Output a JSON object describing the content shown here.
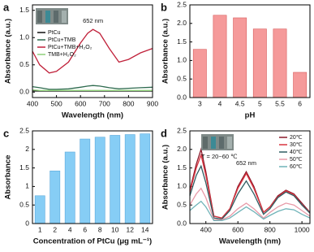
{
  "chart_data": [
    {
      "type": "line",
      "label": "a",
      "xlabel": "Wavelength (nm)",
      "ylabel": "Absorbance (a.u.)",
      "x": [
        400,
        430,
        470,
        500,
        550,
        600,
        630,
        652,
        680,
        720,
        760,
        800,
        850,
        900
      ],
      "xlim": [
        400,
        900
      ],
      "xticks": [
        400,
        500,
        600,
        700,
        800,
        900
      ],
      "ylim": [
        -0.1,
        1.6
      ],
      "yticks": [
        {
          "value": 0,
          "label": "0.0"
        },
        {
          "value": 0.5,
          "label": "0.5"
        },
        {
          "value": 1,
          "label": "1.0"
        },
        {
          "value": 1.5,
          "label": "1.5"
        }
      ],
      "legend": "upper left",
      "annotations": [
        "652 nm"
      ],
      "series": [
        {
          "name": "PtCu",
          "color": "#111111",
          "values": [
            0.02,
            0.02,
            0.02,
            0.02,
            0.02,
            0.02,
            0.02,
            0.02,
            0.02,
            0.02,
            0.02,
            0.02,
            0.02,
            0.02
          ]
        },
        {
          "name": "PtCu+TMB",
          "color": "#2e6b4f",
          "values": [
            0.1,
            0.08,
            0.05,
            0.05,
            0.06,
            0.09,
            0.11,
            0.12,
            0.11,
            0.08,
            0.06,
            0.07,
            0.08,
            0.09
          ]
        },
        {
          "name": "PtCu+TMB+H₂O₂",
          "color": "#c0213a",
          "values": [
            0.75,
            0.5,
            0.35,
            0.38,
            0.55,
            0.9,
            1.08,
            1.15,
            1.08,
            0.8,
            0.55,
            0.6,
            0.72,
            0.8
          ]
        },
        {
          "name": "TMB+H₂O₂",
          "color": "#8fd17a",
          "values": [
            0.04,
            0.03,
            0.03,
            0.03,
            0.03,
            0.03,
            0.03,
            0.03,
            0.03,
            0.03,
            0.03,
            0.03,
            0.03,
            0.03
          ]
        }
      ]
    },
    {
      "type": "bar",
      "label": "b",
      "xlabel": "pH",
      "ylabel": "Absorbance (a.u.)",
      "categories": [
        "3",
        "4",
        "4.5",
        "5",
        "5.5",
        "6"
      ],
      "values": [
        1.3,
        2.22,
        2.15,
        1.85,
        1.85,
        0.68
      ],
      "color": "#f59a9a",
      "edge": "#d85c5c",
      "ylim": [
        0,
        2.5
      ],
      "yticks": [
        {
          "value": 0,
          "label": "0.0"
        },
        0.5,
        {
          "value": 1,
          "label": "1.0"
        },
        1.5,
        {
          "value": 2,
          "label": "2.0"
        },
        2.5
      ]
    },
    {
      "type": "bar",
      "label": "c",
      "xlabel": "Concentration of PtCu (μg mL⁻¹)",
      "ylabel": "Absorbance",
      "categories": [
        "1",
        "2",
        "4",
        "6",
        "8",
        "10",
        "12",
        "14"
      ],
      "values": [
        0.75,
        1.42,
        1.93,
        2.28,
        2.33,
        2.38,
        2.4,
        2.42
      ],
      "color": "#86cdf5",
      "edge": "#5aa8da",
      "ylim": [
        0,
        2.5
      ],
      "yticks": [
        0,
        0.5,
        1,
        1.5,
        2,
        2.5
      ]
    },
    {
      "type": "line",
      "label": "d",
      "xlabel": "Wavelength (nm)",
      "ylabel": "Absorbance (a.u.)",
      "x": [
        300,
        340,
        370,
        400,
        450,
        500,
        550,
        600,
        652,
        700,
        760,
        800,
        850,
        900,
        950,
        1000,
        1050
      ],
      "xlim": [
        300,
        1050
      ],
      "xticks": [
        400,
        600,
        800,
        1000
      ],
      "ylim": [
        0,
        2.5
      ],
      "yticks": [
        {
          "value": 0,
          "label": "0.0"
        },
        0.5,
        {
          "value": 1,
          "label": "1.0"
        },
        1.5,
        {
          "value": 2,
          "label": "2.0"
        },
        2.5
      ],
      "legend": "upper right",
      "annotations": [
        "652 nm",
        "T = 20~60 ℃"
      ],
      "series": [
        {
          "name": "20℃",
          "color": "#8b1a2b",
          "values": [
            0.9,
            1.6,
            2.0,
            1.4,
            0.2,
            0.15,
            0.4,
            1.0,
            1.4,
            1.0,
            0.3,
            0.45,
            0.75,
            0.9,
            0.8,
            0.55,
            0.3
          ]
        },
        {
          "name": "30℃",
          "color": "#d9343f",
          "values": [
            0.85,
            1.5,
            1.85,
            1.3,
            0.2,
            0.15,
            0.4,
            0.95,
            1.35,
            0.95,
            0.3,
            0.45,
            0.72,
            0.88,
            0.78,
            0.5,
            0.3
          ]
        },
        {
          "name": "40℃",
          "color": "#2f5d62",
          "values": [
            0.75,
            1.3,
            1.55,
            1.1,
            0.15,
            0.12,
            0.35,
            0.8,
            1.15,
            0.8,
            0.25,
            0.4,
            0.7,
            0.85,
            0.75,
            0.5,
            0.28
          ]
        },
        {
          "name": "50℃",
          "color": "#e89aa8",
          "values": [
            0.5,
            0.8,
            0.95,
            0.7,
            0.1,
            0.1,
            0.2,
            0.4,
            0.55,
            0.4,
            0.15,
            0.3,
            0.45,
            0.55,
            0.5,
            0.35,
            0.2
          ]
        },
        {
          "name": "60℃",
          "color": "#6fb3b8",
          "values": [
            0.35,
            0.5,
            0.6,
            0.45,
            0.08,
            0.08,
            0.15,
            0.3,
            0.45,
            0.32,
            0.12,
            0.22,
            0.33,
            0.4,
            0.37,
            0.25,
            0.15
          ]
        }
      ]
    }
  ]
}
